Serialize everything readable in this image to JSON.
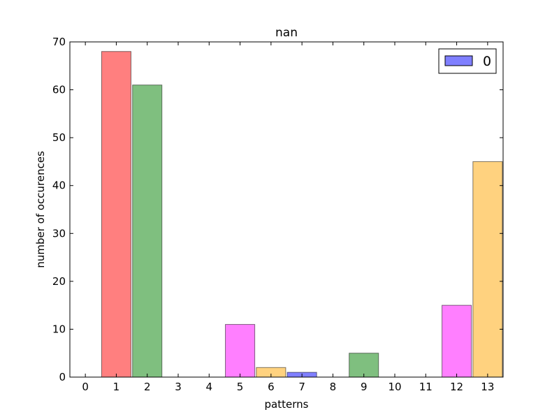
{
  "chart_data": {
    "type": "bar",
    "title": "nan",
    "xlabel": "patterns",
    "ylabel": "number of occurences",
    "categories": [
      "0",
      "1",
      "2",
      "3",
      "4",
      "5",
      "6",
      "7",
      "8",
      "9",
      "10",
      "11",
      "12",
      "13"
    ],
    "series": [
      {
        "name": "0",
        "values": [
          0,
          68,
          61,
          0,
          0,
          11,
          2,
          1,
          0,
          5,
          0,
          0,
          15,
          45
        ]
      }
    ],
    "bar_colors": [
      "#0000ff",
      "#ff0000",
      "#008000",
      "#0000ff",
      "#0000ff",
      "#ff00ff",
      "#ffa500",
      "#0000ff",
      "#0000ff",
      "#008000",
      "#0000ff",
      "#0000ff",
      "#ff00ff",
      "#ffa500"
    ],
    "legend_color": "#0000ff",
    "legend_position": "top-right",
    "ylim": [
      0,
      70
    ],
    "yticks": [
      0,
      10,
      20,
      30,
      40,
      50,
      60,
      70
    ],
    "xlim": [
      -0.5,
      13.5
    ],
    "grid": false
  }
}
